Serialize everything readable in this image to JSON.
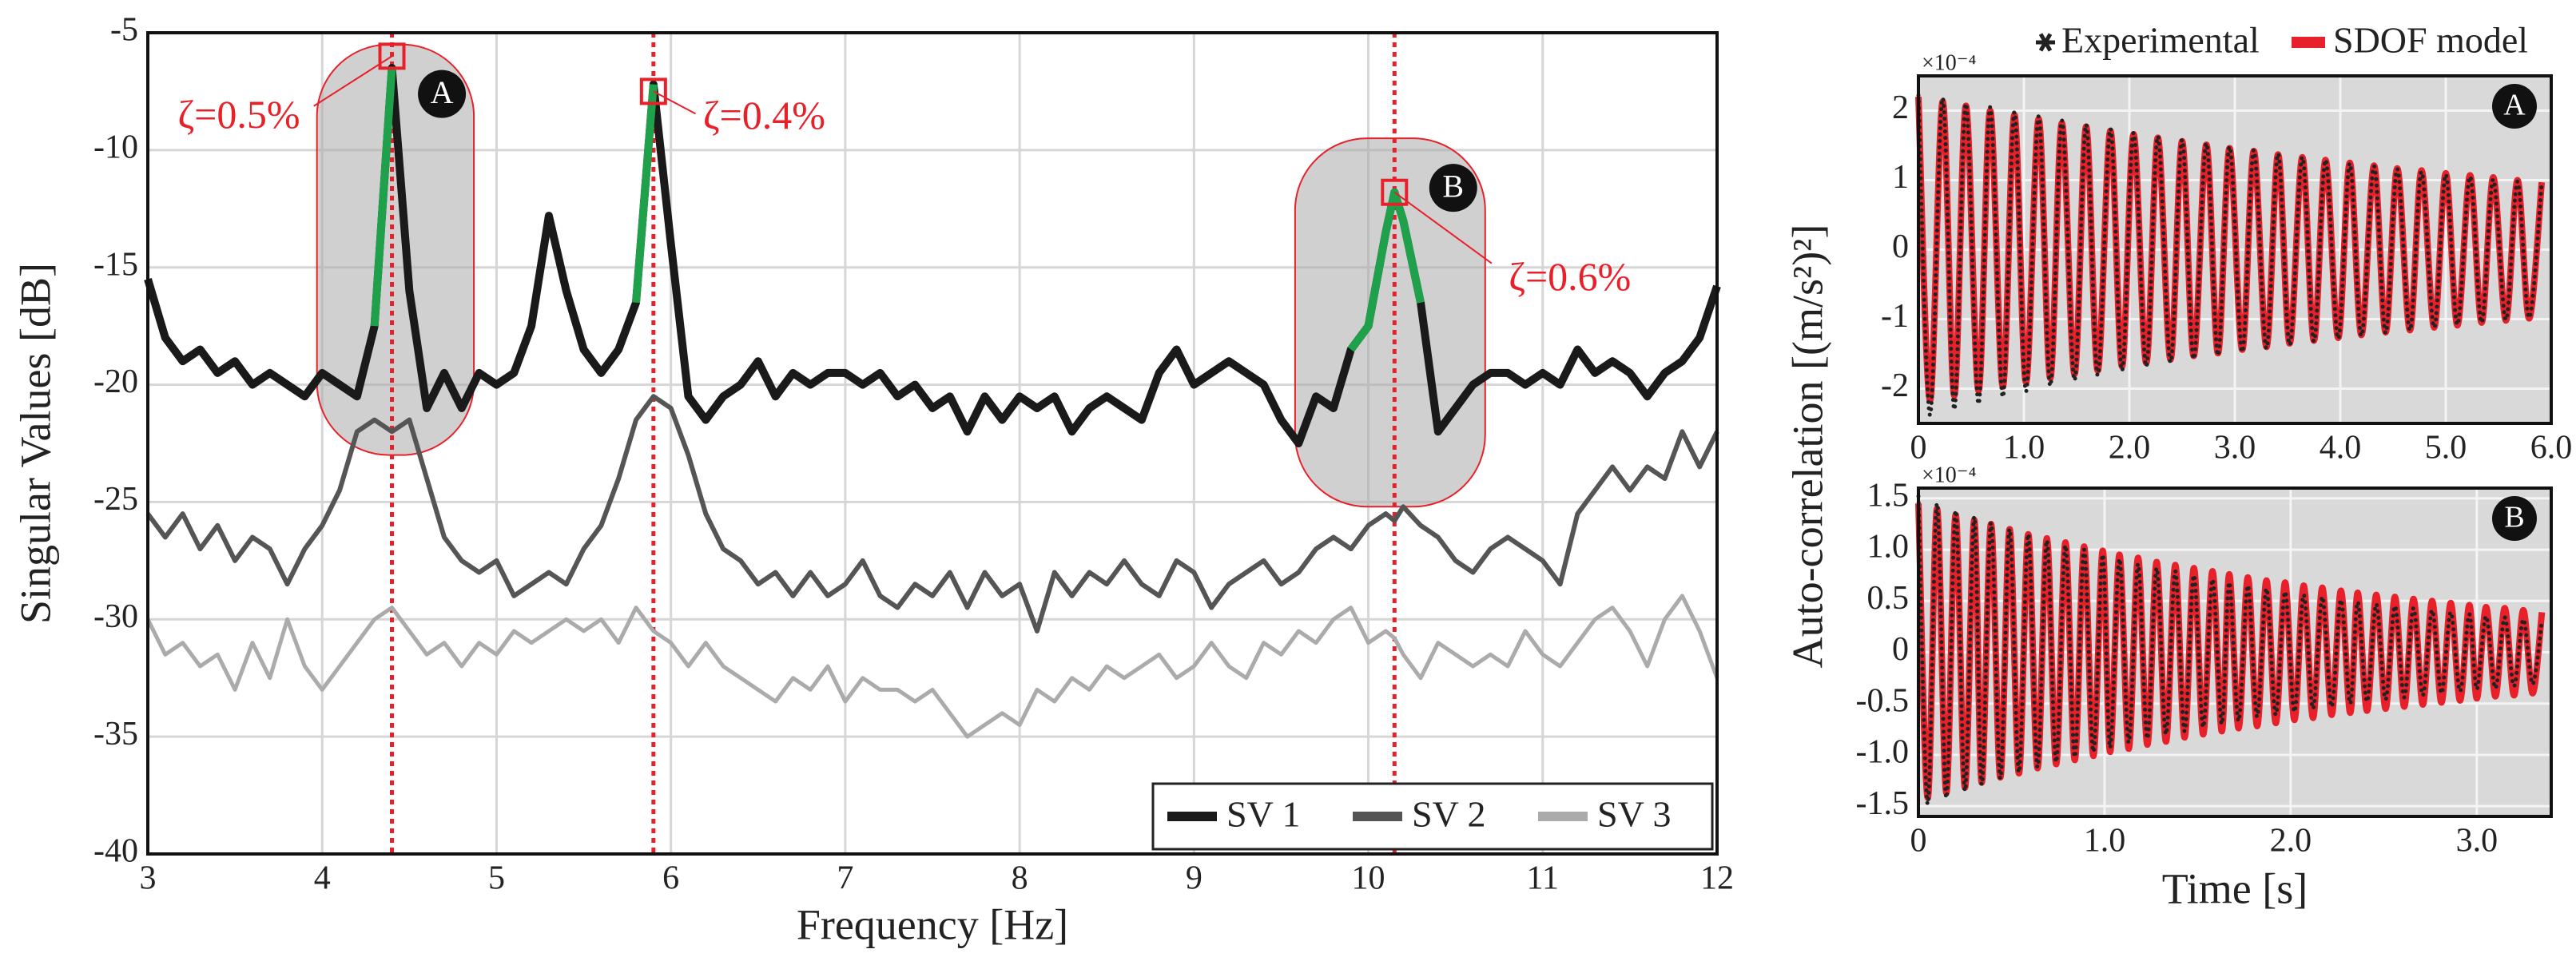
{
  "chart_data": [
    {
      "type": "line",
      "xlabel": "Frequency [Hz]",
      "ylabel": "Singular Values [dB]",
      "xlim": [
        3,
        12
      ],
      "xticks": [
        3,
        4,
        5,
        6,
        7,
        8,
        9,
        10,
        11,
        12
      ],
      "ylim": [
        -40,
        -5
      ],
      "yticks": [
        -40,
        -35,
        -30,
        -25,
        -20,
        -15,
        -10,
        -5
      ],
      "grid": true,
      "background": "#ffffff",
      "legend": "lower right",
      "x": [
        3,
        3.1,
        3.2,
        3.3,
        3.4,
        3.5,
        3.6,
        3.7,
        3.8,
        3.9,
        4,
        4.1,
        4.2,
        4.3,
        4.4,
        4.5,
        4.6,
        4.7,
        4.8,
        4.9,
        5,
        5.1,
        5.2,
        5.3,
        5.4,
        5.5,
        5.6,
        5.7,
        5.8,
        5.9,
        6,
        6.1,
        6.2,
        6.3,
        6.4,
        6.5,
        6.6,
        6.7,
        6.8,
        6.9,
        7,
        7.1,
        7.2,
        7.3,
        7.4,
        7.5,
        7.6,
        7.7,
        7.8,
        7.9,
        8,
        8.1,
        8.2,
        8.3,
        8.4,
        8.5,
        8.6,
        8.7,
        8.8,
        8.9,
        9,
        9.1,
        9.2,
        9.3,
        9.4,
        9.5,
        9.6,
        9.7,
        9.8,
        9.9,
        10,
        10.1,
        10.15,
        10.2,
        10.3,
        10.4,
        10.5,
        10.6,
        10.7,
        10.8,
        10.9,
        11,
        11.1,
        11.2,
        11.3,
        11.4,
        11.5,
        11.6,
        11.7,
        11.8,
        11.9,
        12
      ],
      "series": [
        {
          "name": "SV 1",
          "color": "#1a1a1a",
          "values": [
            -15.5,
            -18,
            -19,
            -18.5,
            -19.5,
            -19,
            -20,
            -19.5,
            -20,
            -20.5,
            -19.5,
            -20,
            -20.5,
            -17.5,
            -6.5,
            -16,
            -21,
            -19.5,
            -21,
            -19.5,
            -20,
            -19.5,
            -17.5,
            -12.8,
            -16,
            -18.5,
            -19.5,
            -18.5,
            -16.5,
            -7.2,
            -14,
            -20.5,
            -21.5,
            -20.5,
            -20,
            -19,
            -20.5,
            -19.5,
            -20,
            -19.5,
            -19.5,
            -20,
            -19.5,
            -20.5,
            -20,
            -21,
            -20.5,
            -22,
            -20.5,
            -21.5,
            -20.5,
            -21,
            -20.5,
            -22,
            -21,
            -20.5,
            -21,
            -21.5,
            -19.5,
            -18.5,
            -20,
            -19.5,
            -19,
            -19.5,
            -20,
            -21.5,
            -22.5,
            -20.5,
            -21,
            -18.5,
            -17.5,
            -13.5,
            -11.8,
            -13,
            -16.5,
            -22,
            -21,
            -20,
            -19.5,
            -19.5,
            -20,
            -19.5,
            -20,
            -18.5,
            -19.5,
            -19,
            -19.5,
            -20.5,
            -19.5,
            -19,
            -18,
            -15.8
          ]
        },
        {
          "name": "SV 2",
          "color": "#555555",
          "values": [
            -25.5,
            -26.5,
            -25.5,
            -27,
            -26,
            -27.5,
            -26.5,
            -27,
            -28.5,
            -27,
            -26,
            -24.5,
            -22,
            -21.5,
            -22,
            -21.5,
            -24,
            -26.5,
            -27.5,
            -28,
            -27.5,
            -29,
            -28.5,
            -28,
            -28.5,
            -27,
            -26,
            -24,
            -21.5,
            -20.5,
            -21,
            -23,
            -25.5,
            -27,
            -27.5,
            -28.5,
            -28,
            -29,
            -28,
            -29,
            -28.5,
            -27.5,
            -29,
            -29.5,
            -28.5,
            -29,
            -28,
            -29.5,
            -28,
            -29,
            -28.5,
            -30.5,
            -28,
            -29,
            -28,
            -28.5,
            -27.5,
            -28.5,
            -29,
            -27.5,
            -28,
            -29.5,
            -28.5,
            -28,
            -27.5,
            -28.5,
            -28,
            -27,
            -26.5,
            -27,
            -26,
            -25.5,
            -25.8,
            -25.2,
            -26,
            -26.5,
            -27.5,
            -28,
            -27,
            -26.5,
            -27,
            -27.5,
            -28.5,
            -25.5,
            -24.5,
            -23.5,
            -24.5,
            -23.5,
            -24,
            -22,
            -23.5,
            -22
          ]
        },
        {
          "name": "SV 3",
          "color": "#ababab",
          "values": [
            -30,
            -31.5,
            -31,
            -32,
            -31.5,
            -33,
            -31,
            -32.5,
            -30,
            -32,
            -33,
            -32,
            -31,
            -30,
            -29.5,
            -30.5,
            -31.5,
            -31,
            -32,
            -31,
            -31.5,
            -30.5,
            -31,
            -30.5,
            -30,
            -30.5,
            -30,
            -31,
            -29.5,
            -30.5,
            -31,
            -32,
            -31,
            -32,
            -32.5,
            -33,
            -33.5,
            -32.5,
            -33,
            -32,
            -33.5,
            -32.5,
            -33,
            -33,
            -33.5,
            -33,
            -34,
            -35,
            -34.5,
            -34,
            -34.5,
            -33,
            -33.5,
            -32.5,
            -33,
            -32,
            -32.5,
            -32,
            -31.5,
            -32.5,
            -32,
            -31,
            -32,
            -32.5,
            -31,
            -31.5,
            -30.5,
            -31,
            -30,
            -29.5,
            -31,
            -30.5,
            -30.8,
            -31.5,
            -32.5,
            -31,
            -31.5,
            -32,
            -31.5,
            -32,
            -30.5,
            -31.5,
            -32,
            -31,
            -30,
            -29.5,
            -30.5,
            -32,
            -30,
            -29,
            -30.5,
            -32.5
          ]
        }
      ],
      "highlights": [
        {
          "color": "#1fa04a",
          "xrange": [
            4.3,
            4.4
          ]
        },
        {
          "color": "#1fa04a",
          "xrange": [
            5.8,
            5.9
          ]
        },
        {
          "color": "#1fa04a",
          "xrange": [
            9.9,
            10.3
          ]
        }
      ],
      "regions": [
        {
          "label": "A",
          "xrange": [
            3.97,
            4.87
          ],
          "yrange": [
            -23,
            -5.5
          ]
        },
        {
          "label": "B",
          "xrange": [
            9.58,
            10.67
          ],
          "yrange": [
            -25.2,
            -9.5
          ]
        }
      ],
      "annotations": [
        {
          "x": 4.4,
          "y": -6,
          "label": "ζ=0.5%"
        },
        {
          "x": 5.9,
          "y": -7.5,
          "label": "ζ=0.4%"
        },
        {
          "x": 10.15,
          "y": -11.8,
          "label": "ζ=0.6%"
        }
      ],
      "annotation_color": "#e8202a"
    },
    {
      "type": "line",
      "label": "A",
      "multiplier": "×10⁻⁴",
      "ylabel": "Auto-correlation [(m/s²)²]",
      "xlim": [
        0,
        6
      ],
      "xticks": [
        0,
        {
          "value": 1,
          "label": "1.0"
        },
        {
          "value": 2,
          "label": "2.0"
        },
        {
          "value": 3,
          "label": "3.0"
        },
        {
          "value": 4,
          "label": "4.0"
        },
        {
          "value": 5,
          "label": "5.0"
        },
        {
          "value": 6,
          "label": "6.0"
        }
      ],
      "ylim": [
        -2.5,
        2.5
      ],
      "yticks": [
        -2,
        -1,
        0,
        1,
        2
      ],
      "grid": true,
      "background": "#d9d9d9",
      "legend": "above",
      "x": [
        0,
        0.11,
        0.23,
        0.34,
        0.45,
        0.57,
        0.68,
        0.8,
        0.91,
        1.02,
        1.14,
        1.25,
        1.36,
        1.48,
        1.59,
        1.7,
        1.82,
        1.93,
        2.04,
        2.16,
        2.27,
        2.39,
        2.5,
        2.61,
        2.73,
        2.84,
        2.95,
        3.07,
        3.18,
        3.3,
        3.41,
        3.52,
        3.64,
        3.75,
        3.86,
        3.98,
        4.09,
        4.2,
        4.32,
        4.43,
        4.54,
        4.66,
        4.77,
        4.89,
        5.0,
        5.11,
        5.23,
        5.34,
        5.45,
        5.57,
        5.68,
        5.79,
        5.91
      ],
      "series": [
        {
          "name": "Experimental",
          "color": "#222222",
          "values": [
            2.22,
            -2.38,
            2.18,
            -2.3,
            2.1,
            -2.22,
            2.05,
            -2.12,
            1.98,
            -2.04,
            1.92,
            -1.96,
            1.86,
            -1.88,
            1.8,
            -1.81,
            1.74,
            -1.74,
            1.68,
            -1.68,
            1.63,
            -1.62,
            1.58,
            -1.57,
            1.53,
            -1.52,
            1.48,
            -1.47,
            1.43,
            -1.42,
            1.38,
            -1.37,
            1.33,
            -1.32,
            1.29,
            -1.28,
            1.24,
            -1.24,
            1.2,
            -1.2,
            1.16,
            -1.16,
            1.12,
            -1.12,
            1.08,
            -1.08,
            1.05,
            -1.05,
            1.01,
            -1.01,
            0.98,
            -0.98,
            0.95
          ]
        },
        {
          "name": "SDOF model",
          "color": "#e8202a",
          "values": [
            2.2,
            -2.17,
            2.13,
            -2.1,
            2.07,
            -2.03,
            2.0,
            -1.97,
            1.94,
            -1.91,
            1.88,
            -1.85,
            1.82,
            -1.79,
            1.77,
            -1.74,
            1.71,
            -1.68,
            1.66,
            -1.63,
            1.61,
            -1.58,
            1.56,
            -1.53,
            1.51,
            -1.49,
            1.46,
            -1.44,
            1.42,
            -1.4,
            1.37,
            -1.35,
            1.33,
            -1.31,
            1.29,
            -1.27,
            1.25,
            -1.23,
            1.21,
            -1.19,
            1.17,
            -1.16,
            1.14,
            -1.12,
            1.1,
            -1.09,
            1.07,
            -1.05,
            1.04,
            -1.02,
            1.0,
            -0.99,
            0.97
          ]
        }
      ]
    },
    {
      "type": "line",
      "label": "B",
      "multiplier": "×10⁻⁴",
      "xlabel": "Time [s]",
      "xlim": [
        0,
        3.4
      ],
      "xticks": [
        0,
        {
          "value": 1,
          "label": "1.0"
        },
        {
          "value": 2,
          "label": "2.0"
        },
        {
          "value": 3,
          "label": "3.0"
        }
      ],
      "ylim": [
        -1.6,
        1.6
      ],
      "yticks": [
        {
          "value": -1.5,
          "label": "-1.5"
        },
        {
          "value": -1,
          "label": "-1.0"
        },
        {
          "value": -0.5,
          "label": "-0.5"
        },
        0,
        {
          "value": 0.5,
          "label": "0.5"
        },
        {
          "value": 1,
          "label": "1.0"
        },
        {
          "value": 1.5,
          "label": "1.5"
        }
      ],
      "grid": true,
      "background": "#d9d9d9",
      "x": [
        0,
        0.05,
        0.1,
        0.15,
        0.2,
        0.25,
        0.3,
        0.34,
        0.39,
        0.44,
        0.49,
        0.54,
        0.59,
        0.64,
        0.69,
        0.74,
        0.79,
        0.84,
        0.89,
        0.94,
        0.99,
        1.03,
        1.08,
        1.13,
        1.18,
        1.23,
        1.28,
        1.33,
        1.38,
        1.43,
        1.48,
        1.53,
        1.58,
        1.63,
        1.67,
        1.72,
        1.77,
        1.82,
        1.87,
        1.92,
        1.97,
        2.02,
        2.07,
        2.12,
        2.17,
        2.22,
        2.27,
        2.32,
        2.36,
        2.41,
        2.46,
        2.51,
        2.56,
        2.61,
        2.66,
        2.71,
        2.76,
        2.81,
        2.86,
        2.91,
        2.96,
        3.0,
        3.05,
        3.1,
        3.15,
        3.2,
        3.25,
        3.3,
        3.35
      ],
      "series": [
        {
          "name": "Experimental",
          "color": "#222222",
          "values": [
            1.52,
            -1.48,
            1.45,
            -1.42,
            1.38,
            -1.35,
            1.32,
            -1.29,
            1.26,
            -1.23,
            1.2,
            -1.17,
            1.15,
            -1.12,
            1.09,
            -1.07,
            1.04,
            -1.02,
            1.0,
            -0.97,
            0.95,
            -0.93,
            0.91,
            -0.88,
            0.86,
            -0.84,
            0.82,
            -0.8,
            0.79,
            -0.77,
            0.75,
            -0.73,
            0.71,
            -0.7,
            0.68,
            -0.67,
            0.65,
            -0.63,
            0.62,
            -0.61,
            0.59,
            -0.58,
            0.56,
            -0.55,
            0.54,
            -0.53,
            0.51,
            -0.5,
            0.49,
            -0.48,
            0.47,
            -0.46,
            0.45,
            -0.44,
            0.43,
            -0.42,
            0.41,
            -0.4,
            0.39,
            -0.38,
            0.37,
            -0.36,
            0.35,
            -0.35,
            0.34,
            -0.33,
            0.32,
            -0.31,
            0.31
          ]
        },
        {
          "name": "SDOF model",
          "color": "#e8202a",
          "values": [
            1.45,
            -1.42,
            1.4,
            -1.37,
            1.34,
            -1.32,
            1.29,
            -1.27,
            1.25,
            -1.22,
            1.2,
            -1.18,
            1.15,
            -1.13,
            1.11,
            -1.09,
            1.07,
            -1.05,
            1.03,
            -1.01,
            0.99,
            -0.97,
            0.95,
            -0.94,
            0.92,
            -0.9,
            0.88,
            -0.87,
            0.85,
            -0.83,
            0.82,
            -0.8,
            0.79,
            -0.77,
            0.76,
            -0.74,
            0.73,
            -0.72,
            0.7,
            -0.69,
            0.68,
            -0.66,
            0.65,
            -0.64,
            0.63,
            -0.61,
            0.6,
            -0.59,
            0.58,
            -0.57,
            0.56,
            -0.55,
            0.54,
            -0.53,
            0.52,
            -0.51,
            0.5,
            -0.49,
            0.48,
            -0.47,
            0.46,
            -0.45,
            0.44,
            -0.43,
            0.43,
            -0.42,
            0.41,
            -0.4,
            0.39
          ]
        }
      ]
    }
  ]
}
